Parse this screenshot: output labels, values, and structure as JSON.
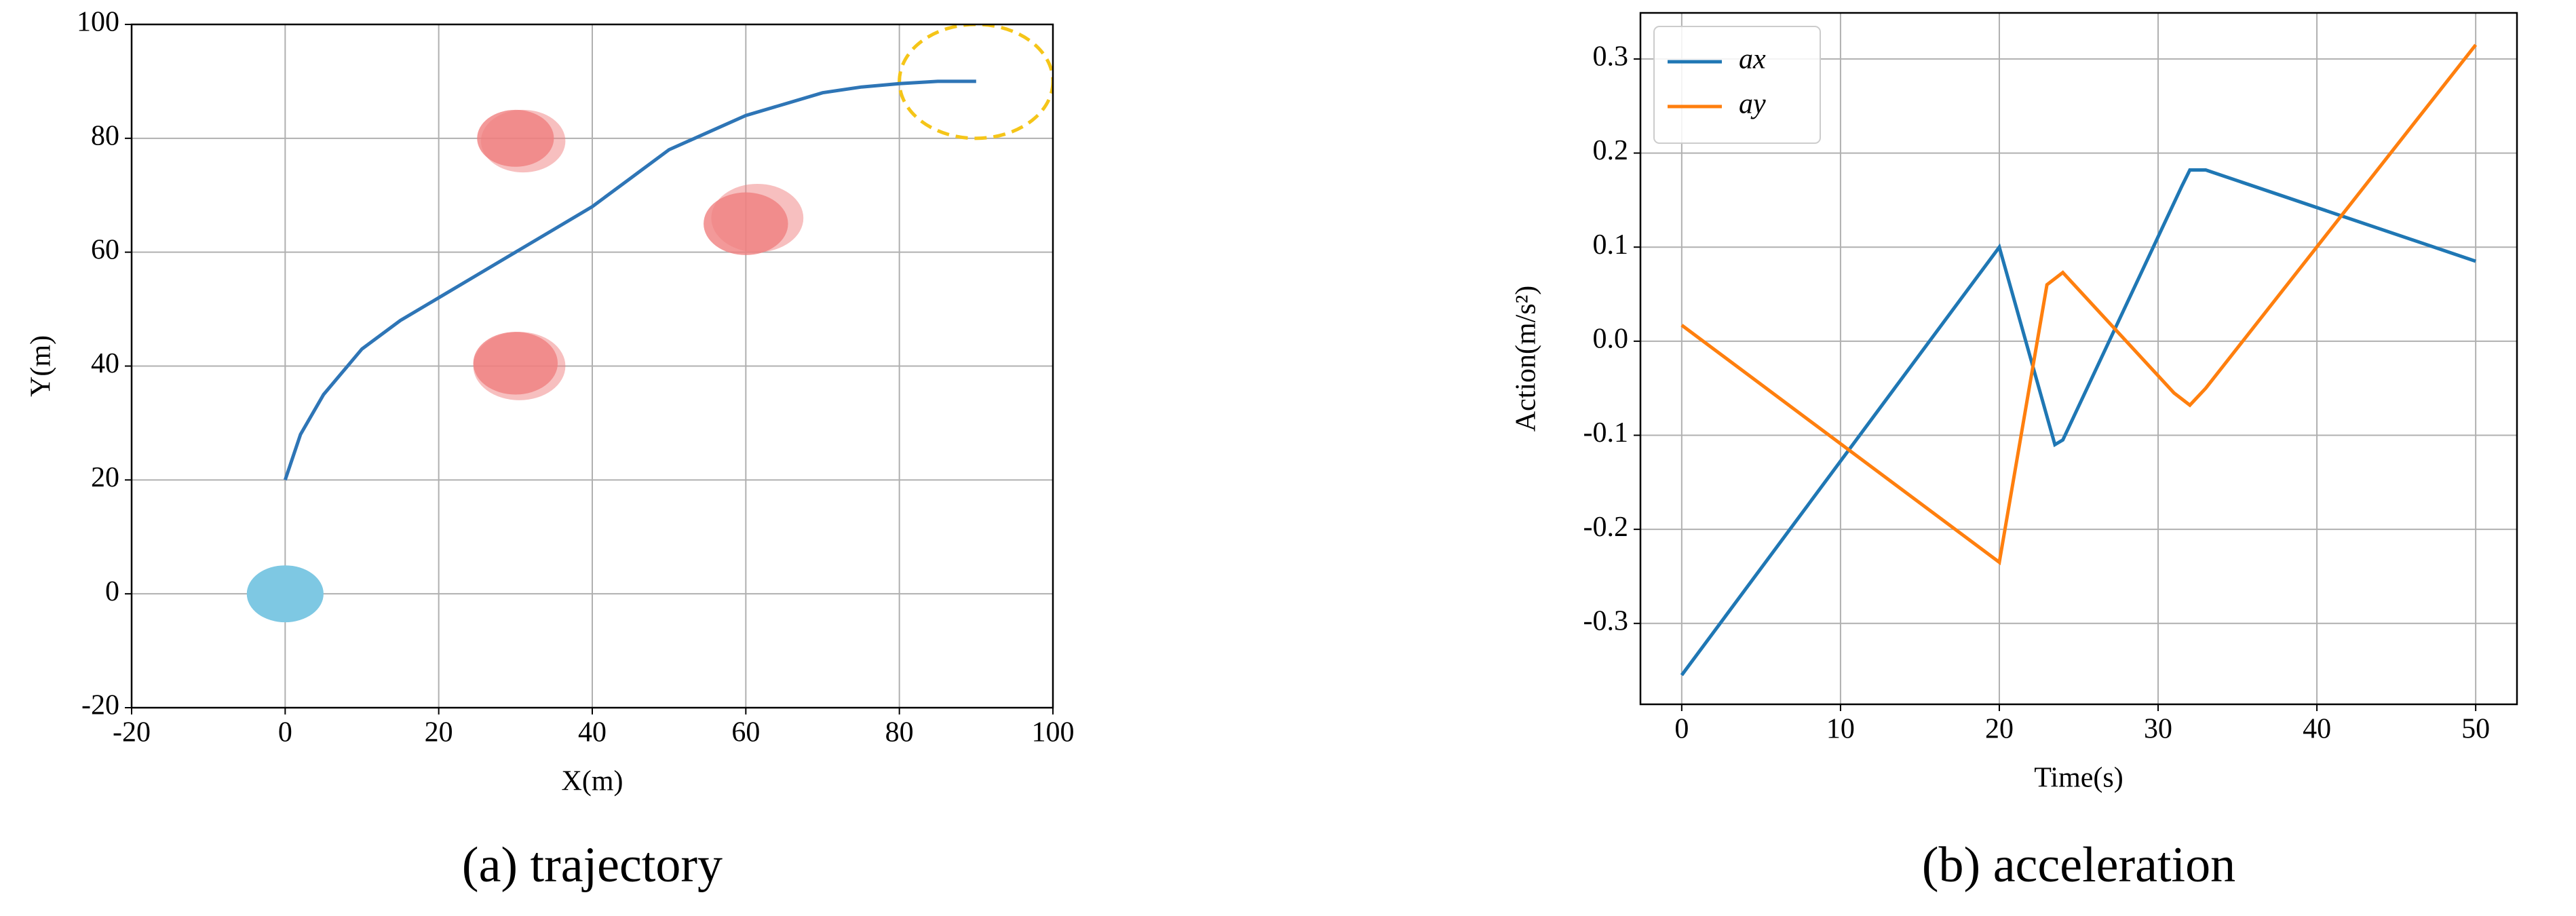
{
  "chart_data": [
    {
      "type": "line",
      "caption": "(a) trajectory",
      "xlabel": "X(m)",
      "ylabel": "Y(m)",
      "xlim": [
        -20,
        100
      ],
      "ylim": [
        -20,
        100
      ],
      "xticks": [
        -20,
        0,
        20,
        40,
        60,
        80,
        100
      ],
      "yticks": [
        -20,
        0,
        20,
        40,
        60,
        80,
        100
      ],
      "grid": true,
      "series": [
        {
          "color": "#2e75b6",
          "x": [
            0,
            2,
            5,
            10,
            15,
            20,
            25,
            30,
            35,
            40,
            45,
            50,
            55,
            60,
            65,
            70,
            75,
            80,
            85,
            90
          ],
          "values": [
            20,
            28,
            35,
            43,
            48,
            52,
            56,
            60,
            64,
            68,
            73,
            78,
            81,
            84,
            86,
            88,
            89,
            89.6,
            90,
            90
          ]
        }
      ],
      "circles": [
        {
          "x": 0,
          "y": 0,
          "r": 5,
          "color": "#7ec8e3",
          "opacity": 1,
          "dashed": false
        },
        {
          "x": 30,
          "y": 80,
          "r": 5,
          "color": "#f08080",
          "opacity": 0.8,
          "dashed": false
        },
        {
          "x": 31,
          "y": 79.5,
          "r": 5.5,
          "color": "#f08080",
          "opacity": 0.5,
          "dashed": false
        },
        {
          "x": 60,
          "y": 65,
          "r": 5.5,
          "color": "#f08080",
          "opacity": 0.8,
          "dashed": false
        },
        {
          "x": 61.5,
          "y": 66,
          "r": 6,
          "color": "#f08080",
          "opacity": 0.5,
          "dashed": false
        },
        {
          "x": 30,
          "y": 40.5,
          "r": 5.5,
          "color": "#f08080",
          "opacity": 0.8,
          "dashed": false
        },
        {
          "x": 30.5,
          "y": 40,
          "r": 6,
          "color": "#f08080",
          "opacity": 0.5,
          "dashed": false
        },
        {
          "x": 90,
          "y": 90,
          "r": 10,
          "color": "#f5c518",
          "opacity": 1,
          "dashed": true
        }
      ]
    },
    {
      "type": "line",
      "caption": "(b) acceleration",
      "xlabel": "Time(s)",
      "ylabel": "Action(m/s²)",
      "xlim": [
        -2.6,
        52.6
      ],
      "ylim": [
        -0.386,
        0.349
      ],
      "xticks": [
        0,
        10,
        20,
        30,
        40,
        50
      ],
      "yticks": [
        -0.3,
        -0.2,
        -0.1,
        {
          "value": 0,
          "label": "0.0"
        },
        0.1,
        0.2,
        0.3
      ],
      "grid": true,
      "legend": "upper left",
      "series": [
        {
          "name": "ax",
          "color": "#1f77b4",
          "x": [
            0,
            20,
            23.5,
            24,
            31.5,
            32,
            33,
            50
          ],
          "values": [
            -0.355,
            0.1,
            -0.11,
            -0.105,
            0.165,
            0.182,
            0.182,
            0.085
          ]
        },
        {
          "name": "ay",
          "color": "#ff7f0e",
          "x": [
            0,
            20,
            23,
            24,
            31,
            32,
            33,
            50
          ],
          "values": [
            0.017,
            -0.235,
            0.06,
            0.073,
            -0.055,
            -0.068,
            -0.05,
            0.315
          ]
        }
      ]
    }
  ]
}
